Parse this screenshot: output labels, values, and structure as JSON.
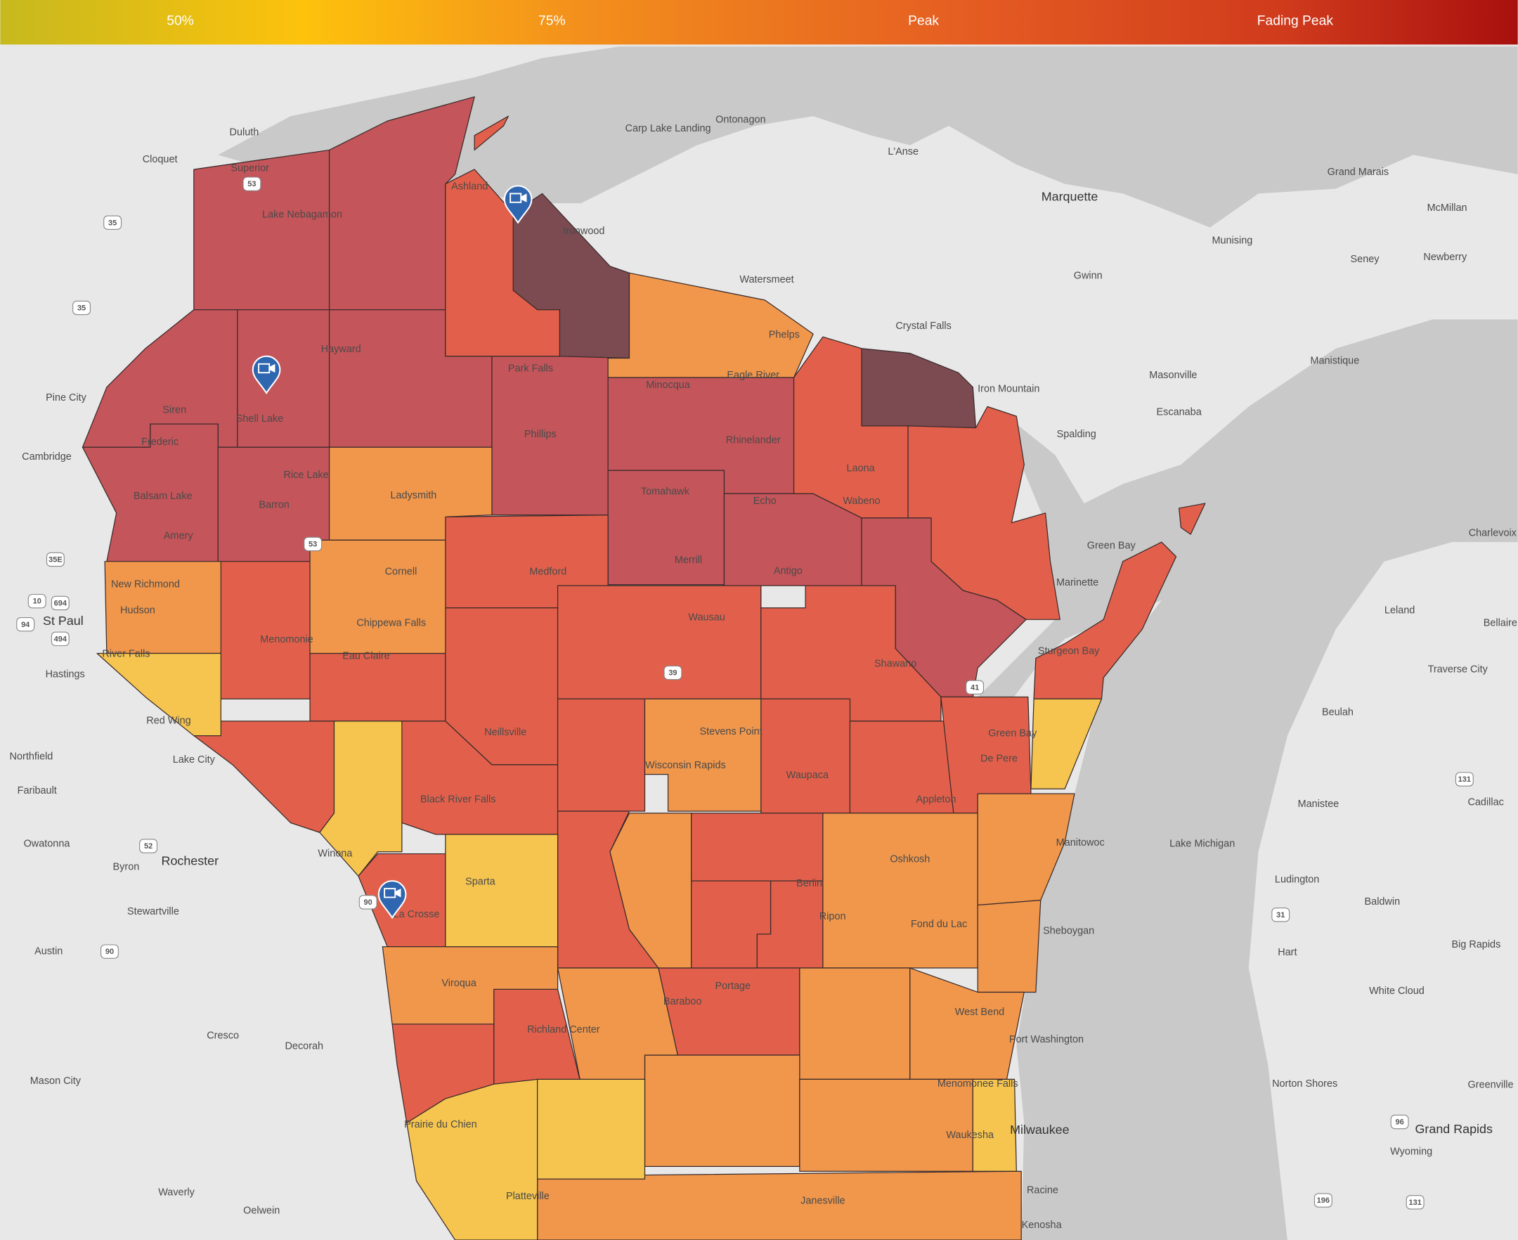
{
  "legend": {
    "labels": [
      "50%",
      "75%",
      "Peak",
      "Fading Peak"
    ]
  },
  "places": [
    "Duluth",
    "Cloquet",
    "Superior",
    "Lake Nebagamon",
    "Ashland",
    "Ironwood",
    "Carp Lake Landing",
    "Ontonagon",
    "L'Anse",
    "Marquette",
    "Grand Marais",
    "McMillan",
    "Munising",
    "Seney",
    "Newberry",
    "Gwinn",
    "Watersmeet",
    "Crystal Falls",
    "Phelps",
    "Hayward",
    "Park Falls",
    "Eagle River",
    "Minocqua",
    "Iron Mountain",
    "Masonville",
    "Manistique",
    "Escanaba",
    "Pine City",
    "Siren",
    "Shell Lake",
    "Phillips",
    "Spalding",
    "Rhinelander",
    "Frederic",
    "Cambridge",
    "Laona",
    "Rice Lake",
    "Ladysmith",
    "Balsam Lake",
    "Tomahawk",
    "Wabeno",
    "Barron",
    "Echo",
    "Amery",
    "Green Bay",
    "Charlevoix",
    "Medford",
    "Merrill",
    "Antigo",
    "Cornell",
    "Marinette",
    "New Richmond",
    "Hudson",
    "Leland",
    "Chippewa Falls",
    "Wausau",
    "Bellaire",
    "Menomonie",
    "St Paul",
    "Eau Claire",
    "Sturgeon Bay",
    "Shawano",
    "River Falls",
    "Hastings",
    "Traverse City",
    "Red Wing",
    "Beulah",
    "Stevens Point",
    "Green Bay",
    "Neillsville",
    "Lake City",
    "De Pere",
    "Northfield",
    "Wisconsin Rapids",
    "Waupaca",
    "Black River Falls",
    "Appleton",
    "Faribault",
    "Manistee",
    "Cadillac",
    "Owatonna",
    "Manitowoc",
    "Lake Michigan",
    "Winona",
    "Oshkosh",
    "Rochester",
    "Byron",
    "Sparta",
    "Ludington",
    "Berlin",
    "Ripon",
    "La Crosse",
    "Stewartville",
    "Baldwin",
    "Fond du Lac",
    "Sheboygan",
    "Big Rapids",
    "Austin",
    "Hart",
    "Viroqua",
    "Baraboo",
    "White Cloud",
    "West Bend",
    "Portage",
    "Richland Center",
    "Port Washington",
    "Cresco",
    "Decorah",
    "Mason City",
    "Norton Shores",
    "Greenville",
    "Menomonee Falls",
    "Milwaukee",
    "Prairie du Chien",
    "Waukesha",
    "Grand Rapids",
    "Wyoming",
    "Waverly",
    "Racine",
    "Platteville",
    "Janesville",
    "Oelwein",
    "Kenosha"
  ],
  "highways": [
    "35",
    "35",
    "35E",
    "694",
    "94",
    "494",
    "10",
    "52",
    "90",
    "53",
    "53",
    "39",
    "41",
    "90",
    "131",
    "31",
    "96",
    "196",
    "131"
  ]
}
